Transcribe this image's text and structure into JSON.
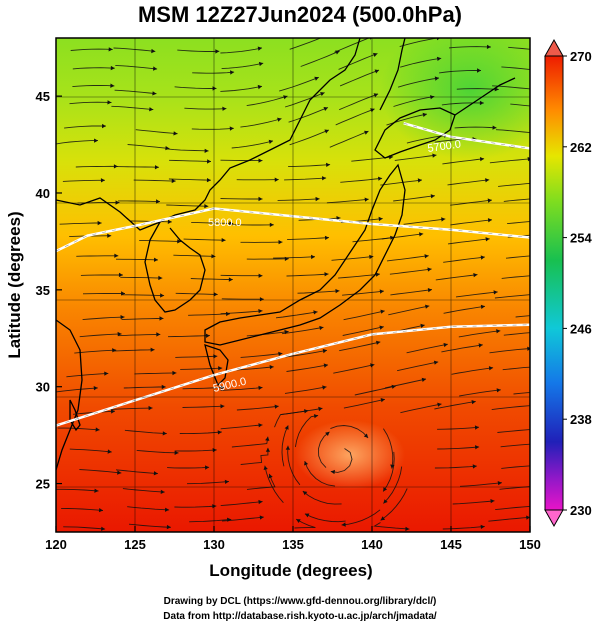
{
  "title": "MSM 12Z27Jun2024 (500.0hPa)",
  "xlabel": "Longitude (degrees)",
  "ylabel": "Latitude  (degrees)",
  "credit_line1": "Drawing by DCL (https://www.gfd-dennou.org/library/dcl/)",
  "credit_line2": "Data from http://database.rish.kyoto-u.ac.jp/arch/jmadata/",
  "colorbar_ticks": [
    "270",
    "262",
    "254",
    "246",
    "238",
    "230"
  ],
  "contour_labels": [
    "5800.0",
    "5900.0",
    "5700.0"
  ],
  "colors": {
    "warm": "#ee2a00",
    "mid": "#ffa100",
    "cool": "#7fdd1f",
    "contour": "#ffffff",
    "coast": "#000000"
  },
  "chart_data": {
    "type": "map",
    "xlim": [
      120,
      150
    ],
    "ylim": [
      22.5,
      48
    ],
    "xticks": [
      "120",
      "125",
      "130",
      "135",
      "140",
      "145",
      "150"
    ],
    "yticks": [
      "25",
      "30",
      "35",
      "40",
      "45"
    ],
    "colorbar_range": [
      230,
      270
    ],
    "colorbar_label_values": [
      270,
      262,
      254,
      246,
      238,
      230
    ],
    "contours": [
      {
        "label": "5900.0",
        "points": [
          [
            120,
            28
          ],
          [
            125,
            29.3
          ],
          [
            130,
            30.6
          ],
          [
            135,
            31.7
          ],
          [
            140,
            32.7
          ],
          [
            145,
            33.1
          ],
          [
            150,
            33.2
          ]
        ]
      },
      {
        "label": "5800.0",
        "points": [
          [
            120,
            37
          ],
          [
            122,
            37.8
          ],
          [
            125,
            38.3
          ],
          [
            130,
            39.2
          ],
          [
            135,
            38.8
          ],
          [
            140,
            38.4
          ],
          [
            145,
            38.1
          ],
          [
            150,
            37.7
          ]
        ]
      },
      {
        "label": "5700.0",
        "points": [
          [
            142,
            43.6
          ],
          [
            145,
            42.9
          ],
          [
            150,
            42.3
          ]
        ]
      }
    ]
  }
}
